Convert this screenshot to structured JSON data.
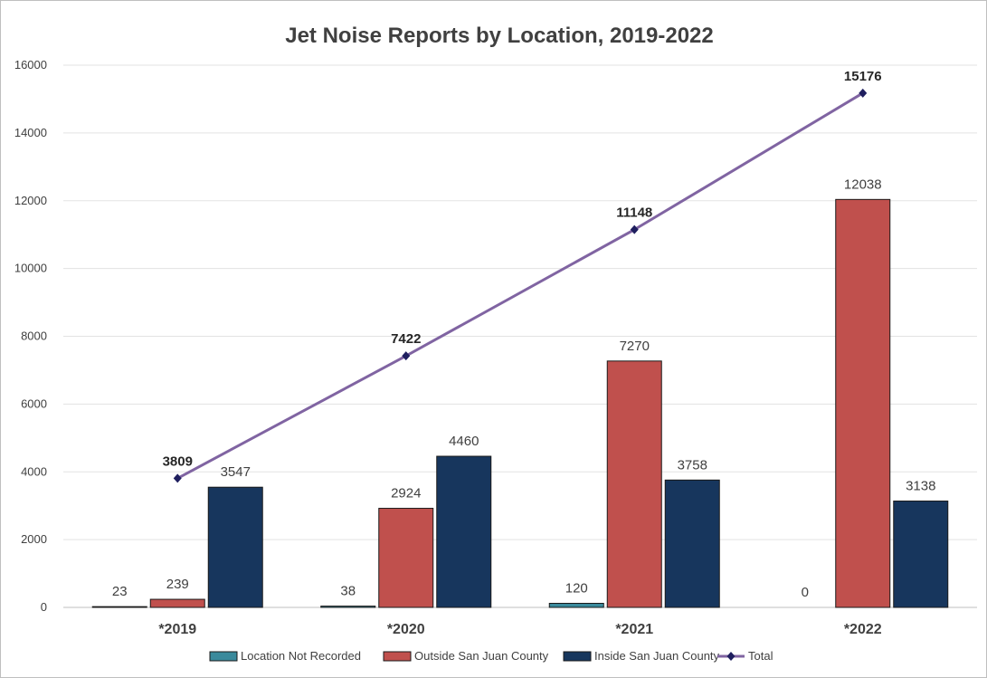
{
  "chart_data": {
    "type": "bar",
    "title": "Jet Noise Reports by Location, 2019-2022",
    "categories": [
      "*2019",
      "*2020",
      "*2021",
      "*2022"
    ],
    "ylim": [
      0,
      16000
    ],
    "yticks": [
      0,
      2000,
      4000,
      6000,
      8000,
      10000,
      12000,
      14000,
      16000
    ],
    "grid": true,
    "legend_position": "bottom",
    "series": [
      {
        "name": "Location Not Recorded",
        "type": "bar",
        "color": "#3A8A9C",
        "values": [
          23,
          38,
          120,
          0
        ]
      },
      {
        "name": "Outside San Juan County",
        "type": "bar",
        "color": "#C0504D",
        "values": [
          239,
          2924,
          7270,
          12038
        ]
      },
      {
        "name": "Inside San Juan County",
        "type": "bar",
        "color": "#17365D",
        "values": [
          3547,
          4460,
          3758,
          3138
        ]
      },
      {
        "name": "Total",
        "type": "line",
        "color": "#8064A2",
        "marker_color": "#1F1F5F",
        "values": [
          3809,
          7422,
          11148,
          15176
        ]
      }
    ]
  }
}
